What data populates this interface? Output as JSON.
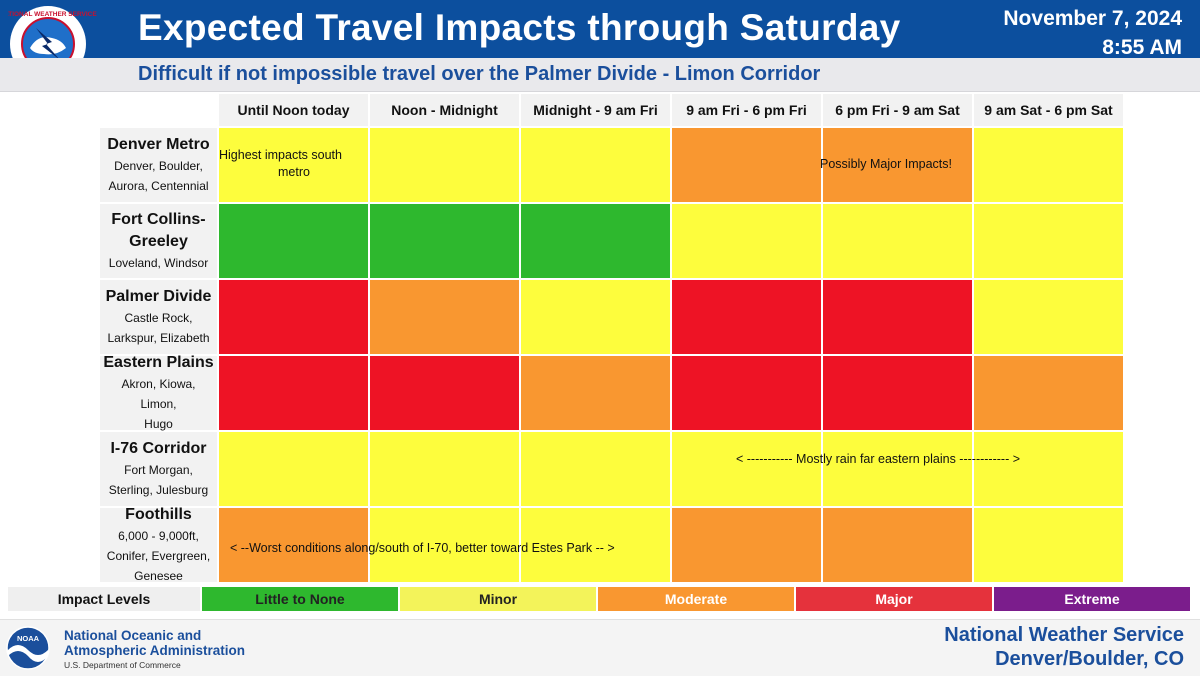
{
  "header": {
    "title": "Expected Travel Impacts through Saturday",
    "date": "November 7, 2024",
    "time": "8:55 AM",
    "subtitle": "Difficult if not impossible travel over the Palmer Divide - Limon Corridor",
    "logo_text": "NATIONAL WEATHER SERVICE"
  },
  "columns": [
    "Until Noon today",
    "Noon - Midnight",
    "Midnight - 9 am Fri",
    "9 am Fri - 6 pm Fri",
    "6 pm Fri - 9 am Sat",
    "9 am Sat - 6 pm Sat"
  ],
  "rows": [
    {
      "name": "Denver Metro",
      "sub": [
        "Denver, Boulder,",
        "Aurora, Centennial"
      ],
      "levels": [
        "Minor",
        "Minor",
        "Minor",
        "Moderate",
        "Moderate",
        "Minor"
      ]
    },
    {
      "name": "Fort Collins-",
      "name2": "Greeley",
      "sub": [
        "Loveland, Windsor"
      ],
      "levels": [
        "Little to None",
        "Little to None",
        "Little to None",
        "Minor",
        "Minor",
        "Minor"
      ]
    },
    {
      "name": "Palmer Divide",
      "sub": [
        "Castle Rock,",
        "Larkspur, Elizabeth"
      ],
      "levels": [
        "Major",
        "Moderate",
        "Minor",
        "Major",
        "Major",
        "Minor"
      ]
    },
    {
      "name": "Eastern Plains",
      "sub": [
        "Akron, Kiowa, Limon,",
        "Hugo"
      ],
      "levels": [
        "Major",
        "Major",
        "Moderate",
        "Major",
        "Major",
        "Moderate"
      ]
    },
    {
      "name": "I-76 Corridor",
      "sub": [
        "Fort Morgan,",
        "Sterling, Julesburg"
      ],
      "levels": [
        "Minor",
        "Minor",
        "Minor",
        "Minor",
        "Minor",
        "Minor"
      ]
    },
    {
      "name": "Foothills",
      "sub": [
        "6,000 - 9,000ft,",
        "Conifer, Evergreen,",
        "Genesee"
      ],
      "levels": [
        "Moderate",
        "Minor",
        "Minor",
        "Moderate",
        "Moderate",
        "Minor"
      ]
    }
  ],
  "notes": {
    "denver_highest": "Highest impacts    south",
    "denver_highest2": "metro",
    "denver_major": "Possibly Major Impacts!",
    "i76_rain": "< -----------  Mostly rain far eastern plains ------------ >",
    "foothills": "< --Worst conditions along/south of I-70, better toward Estes Park -- >"
  },
  "legend": {
    "label": "Impact Levels",
    "levels": [
      {
        "name": "Little to None",
        "color": "#2eb82e",
        "text_color": "#222222"
      },
      {
        "name": "Minor",
        "color": "#f3f35a",
        "text_color": "#222222"
      },
      {
        "name": "Moderate",
        "color": "#f99730",
        "text_color": "#ffffff"
      },
      {
        "name": "Major",
        "color": "#e5323c",
        "text_color": "#ffffff"
      },
      {
        "name": "Extreme",
        "color": "#7b1d8c",
        "text_color": "#ffffff"
      }
    ]
  },
  "footer": {
    "noaa_line1": "National Oceanic and",
    "noaa_line2": "Atmospheric Administration",
    "noaa_line3": "U.S. Department of Commerce",
    "noaa_logo_text": "NOAA",
    "nws_line1": "National Weather Service",
    "nws_line2": "Denver/Boulder, CO"
  },
  "colors": {
    "header_blue": "#0c4f9e",
    "Little to None": "#2eb82e",
    "Minor": "#fdfd3d",
    "Moderate": "#f99730",
    "Major": "#ee1325"
  }
}
